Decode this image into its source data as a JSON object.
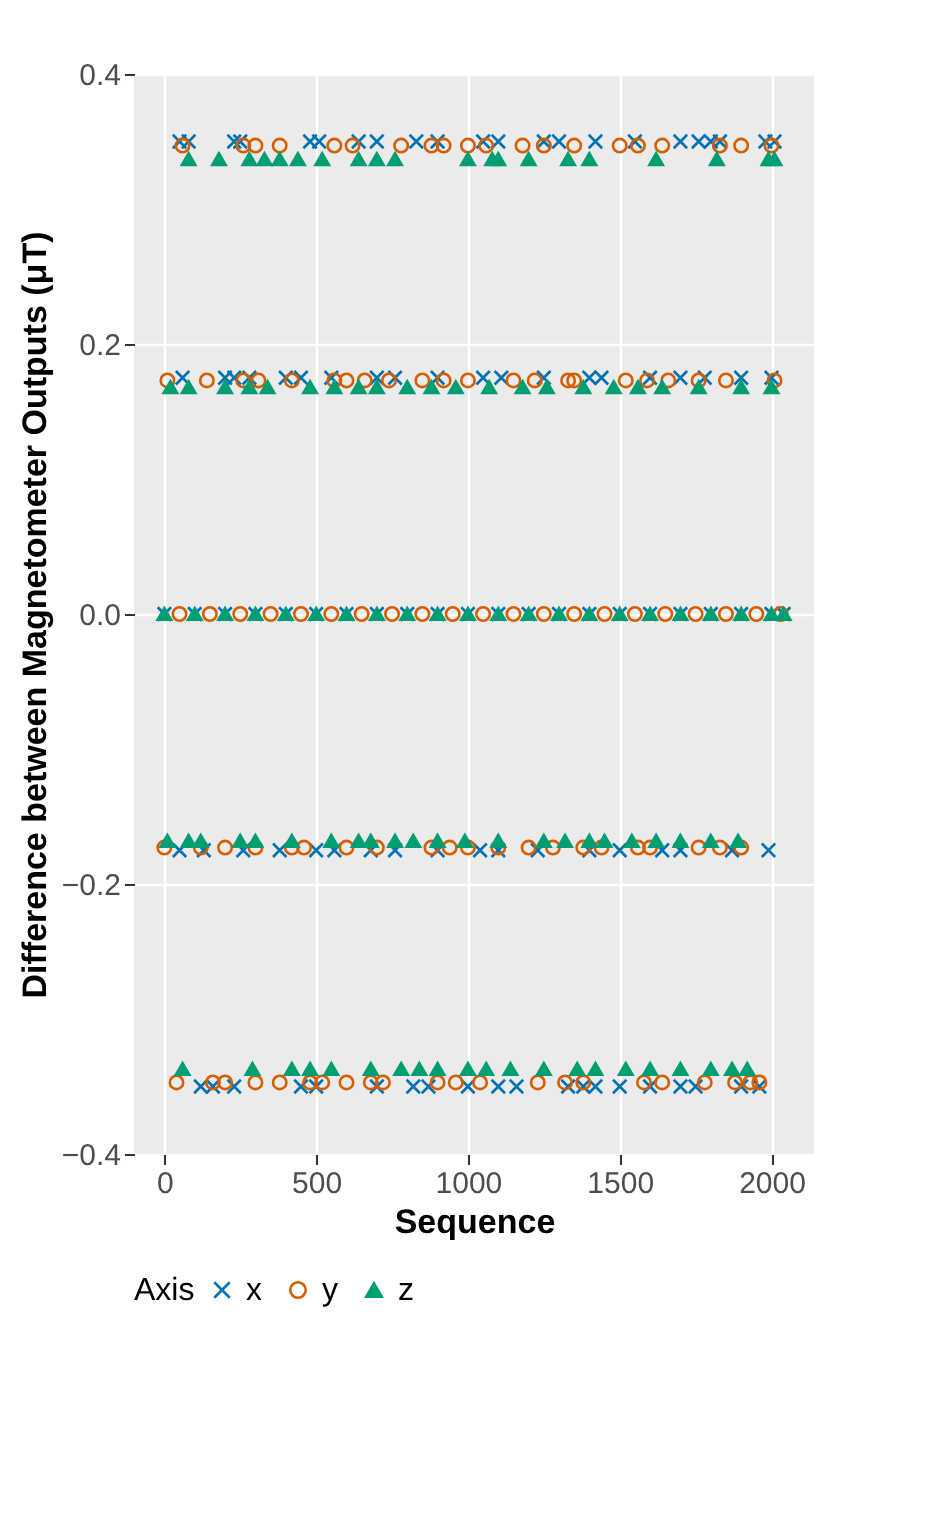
{
  "chart_data": {
    "type": "scatter",
    "xlabel": "Sequence",
    "ylabel": "Difference between Magnetometer Outputs (μT)",
    "legend_title": "Axis",
    "legend": "bottom",
    "grid": true,
    "xlim": [
      -100,
      2140
    ],
    "xticks": [
      0,
      500,
      {
        "value": 1000,
        "label": "1000"
      },
      {
        "value": 1500,
        "label": "1500"
      },
      {
        "value": 2000,
        "label": "2000"
      }
    ],
    "ylim": [
      -0.4,
      0.4
    ],
    "yticks": [
      -0.4,
      -0.2,
      {
        "value": 0,
        "label": "0.0"
      },
      0.2,
      0.4
    ],
    "series": [
      {
        "name": "x",
        "color": "#0072b2",
        "marker": "cross",
        "x": [
          50,
          80,
          230,
          250,
          480,
          510,
          640,
          700,
          830,
          900,
          1050,
          1100,
          1250,
          1300,
          1420,
          1550,
          1700,
          1760,
          1800,
          1830,
          1980,
          2010,
          60,
          200,
          230,
          280,
          400,
          450,
          550,
          700,
          760,
          900,
          1050,
          1110,
          1250,
          1400,
          1440,
          1600,
          1700,
          1780,
          1900,
          2000,
          0,
          100,
          200,
          300,
          400,
          500,
          600,
          700,
          800,
          900,
          1000,
          1100,
          1200,
          1300,
          1400,
          1500,
          1600,
          1700,
          1800,
          1900,
          2000,
          2040,
          50,
          130,
          260,
          380,
          500,
          560,
          680,
          760,
          900,
          1040,
          1100,
          1230,
          1400,
          1500,
          1640,
          1700,
          1870,
          1990,
          120,
          160,
          230,
          450,
          500,
          700,
          820,
          870,
          1000,
          1100,
          1160,
          1330,
          1380,
          1420,
          1500,
          1600,
          1700,
          1750,
          1900,
          1960
        ],
        "values": [
          0.35,
          0.35,
          0.35,
          0.35,
          0.35,
          0.35,
          0.35,
          0.35,
          0.35,
          0.35,
          0.35,
          0.35,
          0.35,
          0.35,
          0.35,
          0.35,
          0.35,
          0.35,
          0.35,
          0.35,
          0.35,
          0.35,
          0.175,
          0.175,
          0.175,
          0.175,
          0.175,
          0.175,
          0.175,
          0.175,
          0.175,
          0.175,
          0.175,
          0.175,
          0.175,
          0.175,
          0.175,
          0.175,
          0.175,
          0.175,
          0.175,
          0.175,
          0,
          0,
          0,
          0,
          0,
          0,
          0,
          0,
          0,
          0,
          0,
          0,
          0,
          0,
          0,
          0,
          0,
          0,
          0,
          0,
          0,
          0,
          -0.175,
          -0.175,
          -0.175,
          -0.175,
          -0.175,
          -0.175,
          -0.175,
          -0.175,
          -0.175,
          -0.175,
          -0.175,
          -0.175,
          -0.175,
          -0.175,
          -0.175,
          -0.175,
          -0.175,
          -0.175,
          -0.35,
          -0.35,
          -0.35,
          -0.35,
          -0.35,
          -0.35,
          -0.35,
          -0.35,
          -0.35,
          -0.35,
          -0.35,
          -0.35,
          -0.35,
          -0.35,
          -0.35,
          -0.35,
          -0.35,
          -0.35,
          -0.35,
          -0.35
        ]
      },
      {
        "name": "y",
        "color": "#d55e00",
        "marker": "circle",
        "x": [
          60,
          260,
          300,
          380,
          560,
          620,
          780,
          880,
          920,
          1000,
          1060,
          1180,
          1250,
          1350,
          1500,
          1560,
          1640,
          1830,
          1900,
          2000,
          10,
          140,
          260,
          310,
          420,
          560,
          600,
          660,
          740,
          850,
          920,
          1000,
          1150,
          1220,
          1330,
          1350,
          1520,
          1590,
          1660,
          1760,
          1850,
          2010,
          50,
          150,
          250,
          350,
          450,
          550,
          650,
          750,
          850,
          950,
          1050,
          1150,
          1250,
          1350,
          1450,
          1550,
          1650,
          1750,
          1850,
          1950,
          2030,
          0,
          120,
          200,
          300,
          420,
          460,
          600,
          700,
          880,
          940,
          1000,
          1100,
          1200,
          1280,
          1380,
          1440,
          1560,
          1600,
          1760,
          1830,
          1900,
          40,
          160,
          200,
          300,
          380,
          480,
          520,
          600,
          680,
          720,
          900,
          960,
          1040,
          1230,
          1320,
          1380,
          1580,
          1640,
          1780,
          1880,
          1930,
          1960
        ],
        "values": [
          0.347,
          0.347,
          0.347,
          0.347,
          0.347,
          0.347,
          0.347,
          0.347,
          0.347,
          0.347,
          0.347,
          0.347,
          0.347,
          0.347,
          0.347,
          0.347,
          0.347,
          0.347,
          0.347,
          0.347,
          0.173,
          0.173,
          0.173,
          0.173,
          0.173,
          0.173,
          0.173,
          0.173,
          0.173,
          0.173,
          0.173,
          0.173,
          0.173,
          0.173,
          0.173,
          0.173,
          0.173,
          0.173,
          0.173,
          0.173,
          0.173,
          0.173,
          0,
          0,
          0,
          0,
          0,
          0,
          0,
          0,
          0,
          0,
          0,
          0,
          0,
          0,
          0,
          0,
          0,
          0,
          0,
          0,
          0,
          -0.173,
          -0.173,
          -0.173,
          -0.173,
          -0.173,
          -0.173,
          -0.173,
          -0.173,
          -0.173,
          -0.173,
          -0.173,
          -0.173,
          -0.173,
          -0.173,
          -0.173,
          -0.173,
          -0.173,
          -0.173,
          -0.173,
          -0.173,
          -0.173,
          -0.347,
          -0.347,
          -0.347,
          -0.347,
          -0.347,
          -0.347,
          -0.347,
          -0.347,
          -0.347,
          -0.347,
          -0.347,
          -0.347,
          -0.347,
          -0.347,
          -0.347,
          -0.347,
          -0.347,
          -0.347,
          -0.347,
          -0.347,
          -0.347,
          -0.347
        ]
      },
      {
        "name": "z",
        "color": "#009e73",
        "marker": "triangle",
        "x": [
          80,
          180,
          280,
          330,
          380,
          440,
          520,
          640,
          700,
          760,
          1000,
          1080,
          1100,
          1200,
          1330,
          1400,
          1620,
          1820,
          1990,
          2010,
          20,
          80,
          200,
          280,
          340,
          480,
          560,
          640,
          700,
          800,
          880,
          960,
          1070,
          1180,
          1260,
          1380,
          1480,
          1560,
          1640,
          1760,
          1900,
          2000,
          0,
          100,
          200,
          300,
          400,
          500,
          600,
          700,
          800,
          900,
          1000,
          1100,
          1200,
          1300,
          1400,
          1500,
          1600,
          1700,
          1800,
          1900,
          2000,
          2040,
          10,
          80,
          120,
          250,
          300,
          420,
          550,
          640,
          680,
          760,
          820,
          900,
          990,
          1100,
          1250,
          1320,
          1400,
          1450,
          1540,
          1620,
          1700,
          1800,
          1890,
          60,
          290,
          420,
          480,
          550,
          680,
          780,
          840,
          900,
          1000,
          1060,
          1140,
          1250,
          1360,
          1420,
          1520,
          1600,
          1700,
          1800,
          1870,
          1920
        ],
        "values": [
          0.337,
          0.337,
          0.337,
          0.337,
          0.337,
          0.337,
          0.337,
          0.337,
          0.337,
          0.337,
          0.337,
          0.337,
          0.337,
          0.337,
          0.337,
          0.337,
          0.337,
          0.337,
          0.337,
          0.337,
          0.168,
          0.168,
          0.168,
          0.168,
          0.168,
          0.168,
          0.168,
          0.168,
          0.168,
          0.168,
          0.168,
          0.168,
          0.168,
          0.168,
          0.168,
          0.168,
          0.168,
          0.168,
          0.168,
          0.168,
          0.168,
          0.168,
          0,
          0,
          0,
          0,
          0,
          0,
          0,
          0,
          0,
          0,
          0,
          0,
          0,
          0,
          0,
          0,
          0,
          0,
          0,
          0,
          0,
          0,
          -0.168,
          -0.168,
          -0.168,
          -0.168,
          -0.168,
          -0.168,
          -0.168,
          -0.168,
          -0.168,
          -0.168,
          -0.168,
          -0.168,
          -0.168,
          -0.168,
          -0.168,
          -0.168,
          -0.168,
          -0.168,
          -0.168,
          -0.168,
          -0.168,
          -0.168,
          -0.168,
          -0.337,
          -0.337,
          -0.337,
          -0.337,
          -0.337,
          -0.337,
          -0.337,
          -0.337,
          -0.337,
          -0.337,
          -0.337,
          -0.337,
          -0.337,
          -0.337,
          -0.337,
          -0.337,
          -0.337,
          -0.337,
          -0.337,
          -0.337,
          -0.337
        ]
      }
    ]
  }
}
